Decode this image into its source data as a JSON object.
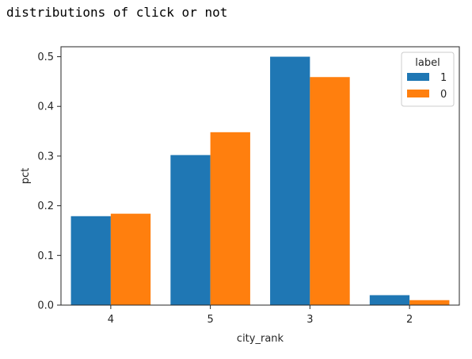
{
  "cell_output": {
    "text": "distributions of click or not"
  },
  "chart_data": {
    "type": "bar",
    "title": "",
    "xlabel": "city_rank",
    "ylabel": "pct",
    "categories": [
      "4",
      "5",
      "3",
      "2"
    ],
    "series": [
      {
        "name": "1",
        "color": "#1f77b4",
        "values": [
          0.179,
          0.302,
          0.5,
          0.02
        ]
      },
      {
        "name": "0",
        "color": "#ff7f0e",
        "values": [
          0.184,
          0.348,
          0.459,
          0.01
        ]
      }
    ],
    "ylim": [
      0,
      0.52
    ],
    "yticks": [
      0.0,
      0.1,
      0.2,
      0.3,
      0.4,
      0.5
    ],
    "ytick_labels": [
      "0.0",
      "0.1",
      "0.2",
      "0.3",
      "0.4",
      "0.5"
    ],
    "grid": false,
    "legend": {
      "title": "label",
      "placement": "top-right"
    }
  }
}
